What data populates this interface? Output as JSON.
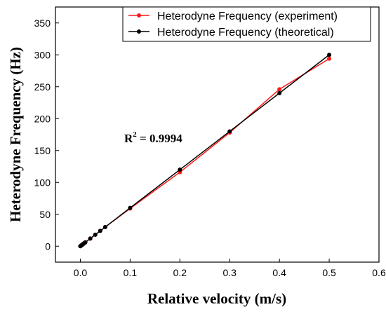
{
  "chart_data": {
    "type": "line",
    "xlabel": "Relative velocity (m/s)",
    "ylabel": "Heterodyne Frequency (Hz)",
    "xlim": [
      -0.05,
      0.6
    ],
    "ylim": [
      -25,
      375
    ],
    "xticks": [
      0.0,
      0.1,
      0.2,
      0.3,
      0.4,
      0.5,
      0.6
    ],
    "xtick_labels": [
      "0.0",
      "0.1",
      "0.2",
      "0.3",
      "0.4",
      "0.5",
      "0.6"
    ],
    "yticks": [
      0,
      50,
      100,
      150,
      200,
      250,
      300,
      350
    ],
    "ytick_labels": [
      "0",
      "50",
      "100",
      "150",
      "200",
      "250",
      "300",
      "350"
    ],
    "grid": false,
    "legend_position": "top-right",
    "annotation": {
      "main": "R",
      "sup": "2",
      "rest": " = 0.9994"
    },
    "series": [
      {
        "name": "Heterodyne Frequency (experiment)",
        "color": "#ff1a1a",
        "x": [
          0.0,
          0.001,
          0.002,
          0.003,
          0.004,
          0.005,
          0.006,
          0.008,
          0.01,
          0.02,
          0.03,
          0.04,
          0.05,
          0.1,
          0.2,
          0.3,
          0.4,
          0.5
        ],
        "y": [
          0,
          0.6,
          1.2,
          1.8,
          2.4,
          3.0,
          3.6,
          4.8,
          6.0,
          12.0,
          18.0,
          24.0,
          30.0,
          59,
          116,
          178,
          246,
          294
        ]
      },
      {
        "name": "Heterodyne Frequency (theoretical)",
        "color": "#000000",
        "x": [
          0.0,
          0.001,
          0.002,
          0.003,
          0.004,
          0.005,
          0.006,
          0.008,
          0.01,
          0.02,
          0.03,
          0.04,
          0.05,
          0.1,
          0.2,
          0.3,
          0.4,
          0.5
        ],
        "y": [
          0,
          0.6,
          1.2,
          1.8,
          2.4,
          3.0,
          3.6,
          4.8,
          6.0,
          12.0,
          18.0,
          24.0,
          30.0,
          60,
          120,
          180,
          240,
          300
        ]
      }
    ]
  }
}
